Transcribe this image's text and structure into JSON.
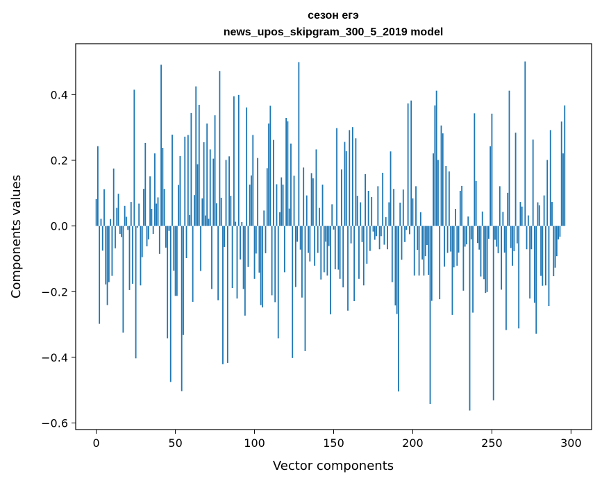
{
  "chart_data": {
    "type": "bar",
    "title": "сезон егэ",
    "subtitle": "news_upos_skipgram_300_5_2019 model",
    "xlabel": "Vector components",
    "ylabel": "Components values",
    "xlim": [
      -13,
      313
    ],
    "ylim": [
      -0.62,
      0.555
    ],
    "xticks": [
      0,
      50,
      100,
      150,
      200,
      250,
      300
    ],
    "xtick_labels": [
      "0",
      "50",
      "100",
      "150",
      "200",
      "250",
      "300"
    ],
    "yticks": [
      -0.6,
      -0.4,
      -0.2,
      0.0,
      0.2,
      0.4
    ],
    "ytick_labels": [
      "−0.6",
      "−0.4",
      "−0.2",
      "0.0",
      "0.2",
      "0.4"
    ],
    "grid": false,
    "bar_color": "#1f77b4",
    "series": [
      {
        "values": [
          0.082,
          0.243,
          -0.298,
          0.022,
          -0.075,
          0.112,
          -0.178,
          -0.241,
          -0.171,
          0.021,
          -0.152,
          0.175,
          -0.068,
          0.055,
          0.098,
          -0.024,
          -0.034,
          -0.325,
          0.061,
          0.028,
          -0.012,
          -0.195,
          0.073,
          -0.176,
          0.415,
          -0.403,
          -0.005,
          0.068,
          -0.181,
          -0.095,
          0.113,
          0.253,
          -0.062,
          -0.041,
          0.151,
          0.052,
          -0.024,
          0.221,
          0.068,
          0.087,
          -0.085,
          0.491,
          0.238,
          0.113,
          -0.066,
          -0.342,
          -0.015,
          -0.475,
          0.278,
          -0.136,
          -0.213,
          -0.213,
          0.125,
          0.213,
          -0.503,
          -0.332,
          0.272,
          -0.098,
          0.277,
          0.033,
          0.344,
          -0.231,
          0.094,
          0.425,
          0.188,
          0.369,
          -0.137,
          0.084,
          0.255,
          0.032,
          0.312,
          0.022,
          0.233,
          -0.192,
          0.205,
          0.337,
          0.069,
          -0.226,
          0.472,
          0.086,
          -0.421,
          -0.064,
          0.201,
          -0.417,
          0.212,
          0.092,
          -0.189,
          0.395,
          0.013,
          -0.221,
          0.399,
          -0.102,
          0.012,
          -0.192,
          -0.273,
          0.361,
          -0.125,
          0.126,
          0.154,
          0.277,
          -0.161,
          -0.084,
          0.207,
          -0.142,
          -0.241,
          -0.248,
          0.047,
          -0.083,
          0.176,
          0.312,
          0.366,
          -0.211,
          0.262,
          -0.232,
          0.127,
          -0.342,
          0.042,
          0.148,
          0.126,
          -0.141,
          0.329,
          0.319,
          0.053,
          0.251,
          -0.402,
          0.153,
          -0.186,
          -0.048,
          0.499,
          -0.072,
          -0.218,
          0.178,
          -0.381,
          0.093,
          -0.082,
          -0.108,
          0.161,
          0.145,
          -0.121,
          0.233,
          -0.082,
          0.055,
          -0.163,
          0.126,
          -0.141,
          -0.048,
          -0.151,
          -0.061,
          -0.269,
          0.066,
          -0.011,
          -0.132,
          0.298,
          -0.133,
          -0.161,
          0.172,
          -0.187,
          0.256,
          0.228,
          -0.258,
          0.292,
          -0.053,
          0.301,
          -0.229,
          0.267,
          0.092,
          -0.161,
          0.072,
          -0.049,
          -0.181,
          0.158,
          -0.115,
          0.107,
          -0.076,
          0.088,
          -0.017,
          -0.042,
          -0.031,
          0.121,
          -0.071,
          -0.031,
          0.162,
          -0.057,
          0.027,
          -0.071,
          0.072,
          0.227,
          -0.171,
          0.113,
          -0.242,
          -0.268,
          -0.504,
          0.071,
          -0.103,
          0.111,
          -0.049,
          -0.012,
          0.373,
          -0.025,
          0.382,
          0.084,
          -0.151,
          0.121,
          -0.073,
          -0.151,
          0.042,
          -0.102,
          -0.151,
          -0.092,
          -0.058,
          -0.149,
          -0.542,
          -0.228,
          0.221,
          0.367,
          0.412,
          0.201,
          -0.223,
          0.306,
          0.282,
          -0.124,
          0.183,
          -0.082,
          0.166,
          -0.078,
          -0.271,
          -0.126,
          0.052,
          -0.121,
          -0.081,
          0.107,
          0.122,
          -0.197,
          -0.063,
          -0.056,
          0.029,
          -0.562,
          -0.041,
          -0.264,
          0.343,
          0.137,
          -0.052,
          -0.072,
          -0.154,
          0.044,
          -0.162,
          -0.204,
          -0.201,
          -0.039,
          0.243,
          0.342,
          -0.531,
          -0.042,
          -0.063,
          -0.083,
          0.121,
          -0.194,
          0.043,
          -0.081,
          -0.317,
          0.101,
          0.412,
          -0.067,
          -0.121,
          -0.077,
          0.284,
          -0.053,
          -0.312,
          0.073,
          0.059,
          0.001,
          0.501,
          -0.071,
          0.032,
          -0.221,
          -0.071,
          0.263,
          -0.234,
          -0.328,
          0.072,
          0.063,
          -0.152,
          -0.182,
          0.093,
          -0.181,
          0.201,
          -0.244,
          0.292,
          0.073,
          -0.153,
          -0.127,
          -0.092,
          -0.041,
          -0.033,
          0.318,
          0.221,
          0.367
        ]
      }
    ]
  }
}
